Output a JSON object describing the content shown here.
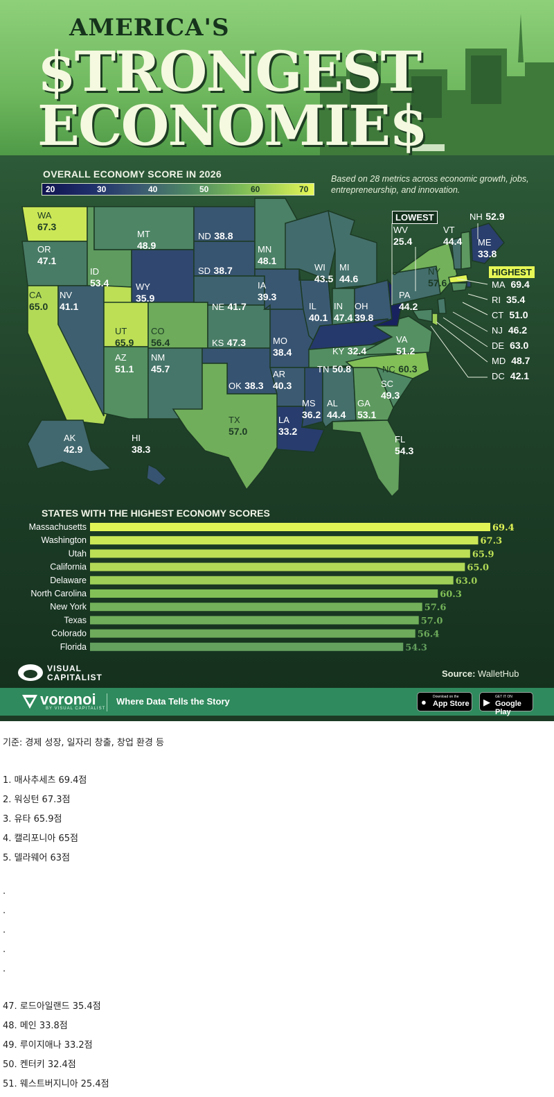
{
  "header": {
    "title_line1": "AMERICA'S",
    "title_line2": "$TRONGEST",
    "title_line3": "ECONOMIE$"
  },
  "legend": {
    "title": "OVERALL ECONOMY SCORE IN 2026",
    "ticks": [
      "20",
      "30",
      "40",
      "50",
      "60",
      "70"
    ],
    "subtitle": "Based on 28 metrics across economic growth, jobs, entrepreneurship, and innovation."
  },
  "colors": {
    "scale_low": "#10134f",
    "scale_mid": "#4f8a63",
    "scale_high": "#e7f756",
    "background": "#1c3a24",
    "footer": "#2f8a5d"
  },
  "map": {
    "lowest_tag": "LOWEST",
    "highest_tag": "HIGHEST",
    "states": [
      {
        "abbr": "WA",
        "score": "67.3"
      },
      {
        "abbr": "OR",
        "score": "47.1"
      },
      {
        "abbr": "CA",
        "score": "65.0"
      },
      {
        "abbr": "ID",
        "score": "53.4"
      },
      {
        "abbr": "NV",
        "score": "41.1"
      },
      {
        "abbr": "MT",
        "score": "48.9"
      },
      {
        "abbr": "WY",
        "score": "35.9"
      },
      {
        "abbr": "UT",
        "score": "65.9"
      },
      {
        "abbr": "AZ",
        "score": "51.1"
      },
      {
        "abbr": "CO",
        "score": "56.4"
      },
      {
        "abbr": "NM",
        "score": "45.7"
      },
      {
        "abbr": "ND",
        "score": "38.8"
      },
      {
        "abbr": "SD",
        "score": "38.7"
      },
      {
        "abbr": "NE",
        "score": "41.7"
      },
      {
        "abbr": "KS",
        "score": "47.3"
      },
      {
        "abbr": "OK",
        "score": "38.3"
      },
      {
        "abbr": "TX",
        "score": "57.0"
      },
      {
        "abbr": "MN",
        "score": "48.1"
      },
      {
        "abbr": "IA",
        "score": "39.3"
      },
      {
        "abbr": "MO",
        "score": "38.4"
      },
      {
        "abbr": "AR",
        "score": "40.3"
      },
      {
        "abbr": "LA",
        "score": "33.2"
      },
      {
        "abbr": "WI",
        "score": "43.5"
      },
      {
        "abbr": "IL",
        "score": "40.1"
      },
      {
        "abbr": "MS",
        "score": "36.2"
      },
      {
        "abbr": "MI",
        "score": "44.6"
      },
      {
        "abbr": "IN",
        "score": "47.4"
      },
      {
        "abbr": "OH",
        "score": "39.8"
      },
      {
        "abbr": "KY",
        "score": "32.4"
      },
      {
        "abbr": "TN",
        "score": "50.8"
      },
      {
        "abbr": "AL",
        "score": "44.4"
      },
      {
        "abbr": "GA",
        "score": "53.1"
      },
      {
        "abbr": "FL",
        "score": "54.3"
      },
      {
        "abbr": "SC",
        "score": "49.3"
      },
      {
        "abbr": "NC",
        "score": "60.3"
      },
      {
        "abbr": "VA",
        "score": "51.2"
      },
      {
        "abbr": "WV",
        "score": "25.4"
      },
      {
        "abbr": "PA",
        "score": "44.2"
      },
      {
        "abbr": "NY",
        "score": "57.6"
      },
      {
        "abbr": "VT",
        "score": "44.4"
      },
      {
        "abbr": "NH",
        "score": "52.9"
      },
      {
        "abbr": "ME",
        "score": "33.8"
      },
      {
        "abbr": "AK",
        "score": "42.9"
      },
      {
        "abbr": "HI",
        "score": "38.3"
      }
    ],
    "east_labels": [
      {
        "abbr": "MA",
        "score": "69.4"
      },
      {
        "abbr": "RI",
        "score": "35.4"
      },
      {
        "abbr": "CT",
        "score": "51.0"
      },
      {
        "abbr": "NJ",
        "score": "46.2"
      },
      {
        "abbr": "DE",
        "score": "63.0"
      },
      {
        "abbr": "MD",
        "score": "48.7"
      },
      {
        "abbr": "DC",
        "score": "42.1"
      }
    ]
  },
  "chart_data": {
    "type": "bar",
    "title": "STATES WITH THE HIGHEST ECONOMY SCORES",
    "categories": [
      "Massachusetts",
      "Washington",
      "Utah",
      "California",
      "Delaware",
      "North Carolina",
      "New York",
      "Texas",
      "Colorado",
      "Florida"
    ],
    "values": [
      69.4,
      67.3,
      65.9,
      65.0,
      63.0,
      60.3,
      57.6,
      57.0,
      56.4,
      54.3
    ],
    "value_labels": [
      "69.4",
      "67.3",
      "65.9",
      "65.0",
      "63.0",
      "60.3",
      "57.6",
      "57.0",
      "56.4",
      "54.3"
    ],
    "xlim": [
      0,
      70
    ],
    "orientation": "horizontal"
  },
  "branding": {
    "vc_line1": "VISUAL",
    "vc_line2": "CAPITALIST",
    "source_label": "Source:",
    "source_name": "WalletHub",
    "voronoi": "voronoi",
    "voronoi_by": "BY VISUAL CAPITALIST",
    "tagline": "Where Data Tells the Story",
    "appstore_small": "Download on the",
    "appstore_big": "App Store",
    "googleplay_small": "GET IT ON",
    "googleplay_big": "Google Play"
  },
  "korean_text": {
    "intro": "기준: 경제 성장, 일자리 창출, 창업 환경 등",
    "top": [
      "1. 매사추세츠 69.4점",
      "2. 워싱턴 67.3점",
      "3. 유타 65.9점",
      "4. 캘리포니아 65점",
      "5. 델라웨어 63점"
    ],
    "dots": [
      ".",
      ".",
      ".",
      ".",
      "."
    ],
    "bottom": [
      "47. 로드아일랜드 35.4점",
      "48. 메인 33.8점",
      "49. 루이지애나 33.2점",
      "50. 켄터키 32.4점",
      "51. 웨스트버지니아 25.4점"
    ]
  }
}
